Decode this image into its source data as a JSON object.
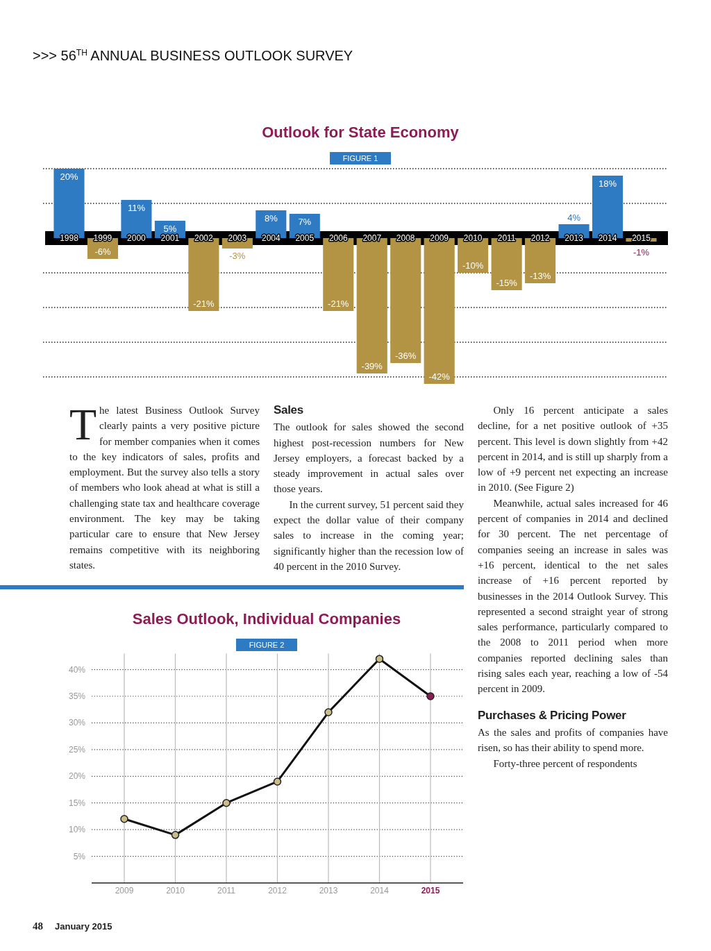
{
  "chart_data": [
    {
      "type": "other",
      "title": ">>> 56$^{TH}$ ANNUAL BUSINESS OUTLOOK SURVEY"
    },
    {
      "type": "bar",
      "title": "Outlook for State Economy",
      "subtitle": "FIGURE 1",
      "categories": [
        "1998",
        "1999",
        "2000",
        "2001",
        "2002",
        "2003",
        "2004",
        "2005",
        "2006",
        "2007",
        "2008",
        "2009",
        "2010",
        "2011",
        "2012",
        "2013",
        "2014",
        "2015"
      ],
      "values": [
        20,
        -6,
        11,
        5,
        -21,
        -3,
        8,
        7,
        -21,
        -39,
        -36,
        -42,
        -10,
        -15,
        -13,
        4,
        18,
        -1
      ],
      "colors": [
        "#2e7bc4",
        "#b39445",
        "#2e7bc4",
        "#2e7bc4",
        "#b39445",
        "#b39445",
        "#2e7bc4",
        "#2e7bc4",
        "#b39445",
        "#b39445",
        "#b39445",
        "#b39445",
        "#b39445",
        "#b39445",
        "#b39445",
        "#2e7bc4",
        "#2e7bc4",
        "#b39445"
      ],
      "value_labels": [
        "20%",
        "-6%",
        "11%",
        "5%",
        "-21%",
        "-3%",
        "8%",
        "7%",
        "-21%",
        "-39%",
        "-36%",
        "-42%",
        "-10%",
        "-15%",
        "-13%",
        "4%",
        "18%",
        "-1%"
      ],
      "ylim": [
        -42,
        20
      ],
      "yticks": [
        {
          "value": 20,
          "label": null
        },
        {
          "value": 10,
          "label": null
        },
        {
          "value": -10,
          "label": null
        },
        {
          "value": -20,
          "label": null
        },
        {
          "value": -30,
          "label": null
        },
        {
          "value": -40,
          "label": null
        }
      ],
      "tick_labels": "x",
      "grid": "y"
    },
    {
      "type": "other",
      "annotations": [
        "The latest Business Outlook Survey clearly paints a very positive picture for member companies when it comes to the key indicators of sales, profits and employment. But the survey also tells a story of members who look ahead at what is still a challenging state tax and healthcare coverage environment. The key may be taking particular care to ensure that New Jersey remains competitive with its neighboring states.",
        "Sales",
        "The outlook for sales showed the second highest post-recession numbers for New Jersey employers, a forecast backed by a steady improvement in actual sales over those years.",
        "In the current survey, 51 percent said they expect the dollar value of their company sales to increase in the coming year; significantly higher than the recession low of 40 percent in the 2010 Survey.",
        "Only 16 percent anticipate a sales decline, for a net positive outlook of +35 percent. This level is down slightly from +42 percent in 2014, and is still up sharply from a low of +9 percent net expecting an increase in 2010. (See Figure 2)",
        "Meanwhile, actual sales increased for 46 percent of companies in 2014 and declined for 30 percent. The net percentage of companies seeing an increase in sales was +16 percent, identical to the net sales increase of +16 percent reported by businesses in the 2014 Outlook Survey. This represented a second straight year of strong sales performance, particularly compared to the 2008 to 2011 period when more companies reported declining sales than rising sales each year, reaching a low of -54 percent in 2009.",
        "Purchases & Pricing Power",
        "As the sales and profits of companies have risen, so has their ability to spend more.",
        "Forty-three percent of respondents",
        "48",
        "January 2015"
      ]
    },
    {
      "type": "line",
      "title": "Sales Outlook, Individual Companies",
      "subtitle": "FIGURE 2",
      "categories": [
        "2009",
        "2010",
        "2011",
        "2012",
        "2013",
        "2014",
        "2015"
      ],
      "series": [
        {
          "color": "#111111",
          "values": [
            12,
            9,
            15,
            19,
            32,
            42,
            35
          ],
          "colors": [
            "#cbbd8a",
            "#cbbd8a",
            "#cbbd8a",
            "#cbbd8a",
            "#cbbd8a",
            "#cbbd8a",
            "#8e1b55"
          ]
        }
      ],
      "ylim": [
        0,
        43
      ],
      "yticks": [
        {
          "value": 5,
          "label": "5%"
        },
        {
          "value": 10,
          "label": "10%"
        },
        {
          "value": 15,
          "label": "15%"
        },
        {
          "value": 20,
          "label": "20%"
        },
        {
          "value": 25,
          "label": "25%"
        },
        {
          "value": 30,
          "label": "30%"
        },
        {
          "value": 35,
          "label": "35%"
        },
        {
          "value": 40,
          "label": "40%"
        }
      ],
      "grid": true,
      "marker": "circle",
      "line_style": "solid"
    }
  ]
}
